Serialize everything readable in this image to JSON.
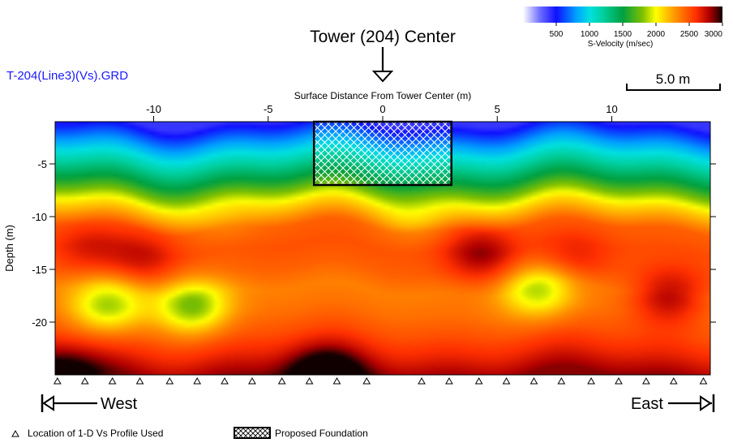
{
  "file_label": "T-204(Line3)(Vs).GRD",
  "tower_label": "Tower (204) Center",
  "scale_bar_label": "5.0 m",
  "west_label": "West",
  "east_label": "East",
  "legend": {
    "profile_label": "Location of 1-D Vs Profile Used",
    "foundation_label": "Proposed Foundation"
  },
  "colorbar": {
    "title": "S-Velocity (m/sec)",
    "ticks": [
      500,
      1000,
      1500,
      2000,
      2500,
      3000
    ],
    "range": [
      0,
      3000
    ],
    "stops": [
      {
        "v": 0,
        "color": "#ffffff"
      },
      {
        "v": 250,
        "color": "#7070ff"
      },
      {
        "v": 500,
        "color": "#1010ff"
      },
      {
        "v": 800,
        "color": "#00a0ff"
      },
      {
        "v": 1000,
        "color": "#00e0e0"
      },
      {
        "v": 1200,
        "color": "#00d0a0"
      },
      {
        "v": 1500,
        "color": "#00a040"
      },
      {
        "v": 1800,
        "color": "#80c000"
      },
      {
        "v": 2000,
        "color": "#ffff00"
      },
      {
        "v": 2300,
        "color": "#ff9000"
      },
      {
        "v": 2600,
        "color": "#ff3000"
      },
      {
        "v": 2800,
        "color": "#b00000"
      },
      {
        "v": 3000,
        "color": "#100000"
      }
    ]
  },
  "chart_data": {
    "type": "heatmap",
    "xlabel": "Surface Distance From Tower Center (m)",
    "ylabel": "Depth (m)",
    "xlim": [
      -14.3,
      14.3
    ],
    "ylim": [
      -25,
      -1
    ],
    "x_ticks": [
      -10,
      -5,
      0,
      5,
      10
    ],
    "y_ticks": [
      -5,
      -10,
      -15,
      -20
    ],
    "velocity_profile_depth": [
      -1,
      -3,
      -5,
      -7,
      -9,
      -11,
      -13,
      -15,
      -17,
      -19,
      -21,
      -23,
      -25
    ],
    "velocity_profile_vs": [
      400,
      800,
      1200,
      1600,
      2100,
      2450,
      2500,
      2450,
      2350,
      2400,
      2500,
      2650,
      2850
    ],
    "anomalies": [
      {
        "x": -12,
        "depth": -18.5,
        "dv": -550
      },
      {
        "x": -8.3,
        "depth": -18.5,
        "dv": -600
      },
      {
        "x": -10.5,
        "depth": -14,
        "dv": 250
      },
      {
        "x": -12.8,
        "depth": -13,
        "dv": 200
      },
      {
        "x": 4.3,
        "depth": -13.5,
        "dv": 350
      },
      {
        "x": 6.8,
        "depth": -17,
        "dv": -500
      },
      {
        "x": 12.5,
        "depth": -17.5,
        "dv": 400
      },
      {
        "x": 8.3,
        "depth": -14,
        "dv": 200
      },
      {
        "x": -2.5,
        "depth": -25,
        "dv": 450
      },
      {
        "x": -14,
        "depth": -25,
        "dv": 350
      },
      {
        "x": 1.5,
        "depth": -9.5,
        "dv": -200
      },
      {
        "x": -7,
        "depth": -9.5,
        "dv": -150
      }
    ],
    "foundation": {
      "x": [
        -3,
        3
      ],
      "depth": [
        -1,
        -7
      ]
    },
    "tower_center_x": 0,
    "profile_locations": [
      -14.2,
      -13,
      -11.8,
      -10.6,
      -9.3,
      -8.1,
      -6.9,
      -5.7,
      -4.4,
      -3.2,
      -2,
      -0.7,
      1.7,
      2.9,
      4.2,
      5.4,
      6.6,
      7.8,
      9.1,
      10.3,
      11.5,
      12.7,
      14
    ]
  }
}
